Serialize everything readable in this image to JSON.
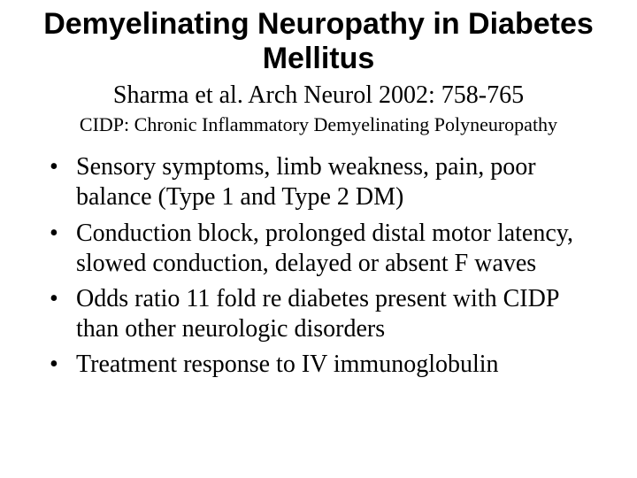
{
  "title": "Demyelinating Neuropathy in Diabetes Mellitus",
  "citation": "Sharma et al. Arch Neurol 2002: 758-765",
  "definition": "CIDP: Chronic Inflammatory Demyelinating Polyneuropathy",
  "bullets": [
    "Sensory symptoms, limb weakness, pain, poor balance (Type 1 and Type 2 DM)",
    "Conduction block, prolonged distal motor latency, slowed conduction, delayed or absent F waves",
    "Odds ratio 11 fold re diabetes present with CIDP than other neurologic disorders",
    "Treatment response to IV immunoglobulin"
  ],
  "style": {
    "background_color": "#ffffff",
    "text_color": "#000000",
    "title_font_family": "Arial",
    "title_font_weight": 900,
    "title_font_size_pt": 26,
    "body_font_family": "Times New Roman",
    "citation_font_size_pt": 21,
    "definition_font_size_pt": 17,
    "bullet_font_size_pt": 21,
    "bullet_marker": "•"
  }
}
